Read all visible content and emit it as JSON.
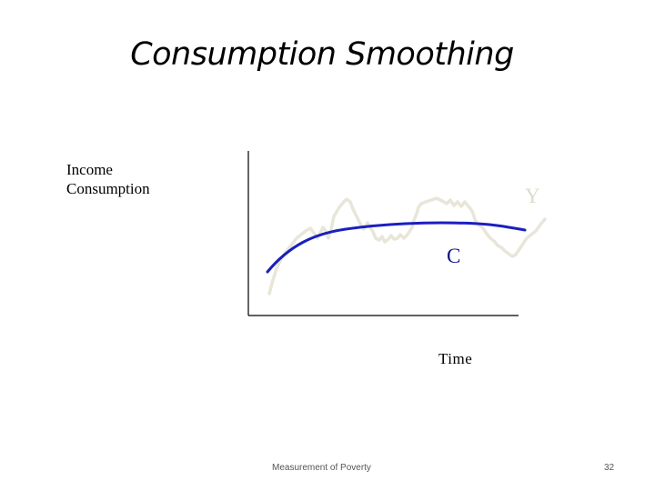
{
  "slide": {
    "title": "Consumption Smoothing",
    "footer": "Measurement of Poverty",
    "page_number": "32"
  },
  "diagram": {
    "ylabel_lines": [
      "Income",
      "Consumption"
    ],
    "xlabel": "Time",
    "income_label": "Y",
    "consumption_label": "C",
    "colors": {
      "axes": "#000000",
      "income_curve": "#e8e6d8",
      "income_label": "#dddbcc",
      "consumption_curve": "#1a1fbf",
      "consumption_label": "#0a1188"
    }
  }
}
